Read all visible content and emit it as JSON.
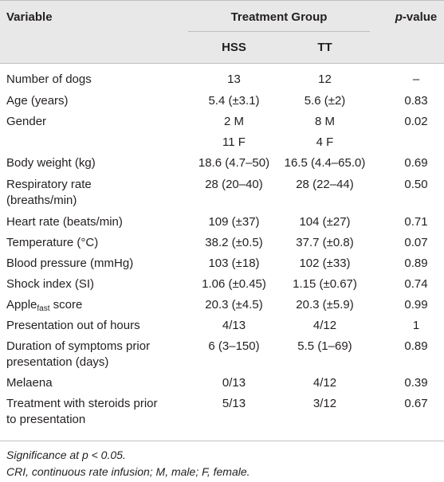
{
  "header": {
    "variable": "Variable",
    "treatment_group": "Treatment Group",
    "p_value_p": "p",
    "p_value_rest": "-value",
    "group1": "HSS",
    "group2": "TT"
  },
  "rows": [
    {
      "variable": "Number of dogs",
      "hss": "13",
      "tt": "12",
      "p": "–"
    },
    {
      "variable": "Age (years)",
      "hss": "5.4 (±3.1)",
      "tt": "5.6 (±2)",
      "p": "0.83"
    },
    {
      "variable": "Gender",
      "hss": "2 M",
      "tt": "8 M",
      "p": "0.02",
      "hss2": "11 F",
      "tt2": "4 F"
    },
    {
      "variable": "Body weight (kg)",
      "hss": "18.6 (4.7–50)",
      "tt": "16.5 (4.4–65.0)",
      "p": "0.69"
    },
    {
      "variable": "Respiratory rate",
      "variable2": "(breaths/min)",
      "hss": "28 (20–40)",
      "tt": "28 (22–44)",
      "p": "0.50"
    },
    {
      "variable": "Heart rate (beats/min)",
      "hss": "109 (±37)",
      "tt": "104 (±27)",
      "p": "0.71"
    },
    {
      "variable": "Temperature (°C)",
      "hss": "38.2 (±0.5)",
      "tt": "37.7 (±0.8)",
      "p": "0.07"
    },
    {
      "variable": "Blood pressure (mmHg)",
      "hss": "103 (±18)",
      "tt": "102 (±33)",
      "p": "0.89"
    },
    {
      "variable": "Shock index (SI)",
      "hss": "1.06 (±0.45)",
      "tt": "1.15 (±0.67)",
      "p": "0.74"
    },
    {
      "variable": "Apple",
      "variable_sub": "fast",
      "variable_after": " score",
      "hss": "20.3 (±4.5)",
      "tt": "20.3 (±5.9)",
      "p": "0.99"
    },
    {
      "variable": "Presentation out of hours",
      "hss": "4/13",
      "tt": "4/12",
      "p": "1"
    },
    {
      "variable": "Duration of symptoms prior",
      "variable2": "presentation (days)",
      "hss": "6 (3–150)",
      "tt": "5.5 (1–69)",
      "p": "0.89"
    },
    {
      "variable": "Melaena",
      "hss": "0/13",
      "tt": "4/12",
      "p": "0.39"
    },
    {
      "variable": "Treatment with steroids prior",
      "variable2": "to presentation",
      "hss": "5/13",
      "tt": "3/12",
      "p": "0.67"
    }
  ],
  "footnotes": {
    "line1": "Significance at p < 0.05.",
    "line2": "CRI, continuous rate infusion; M, male; F, female."
  }
}
